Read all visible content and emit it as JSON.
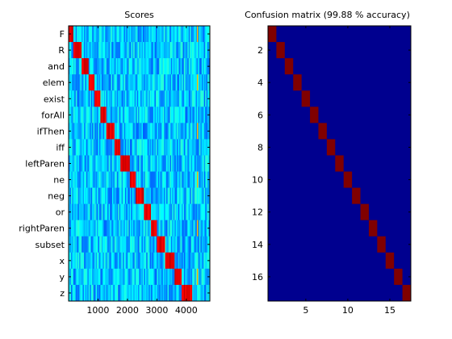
{
  "chart_data": [
    {
      "type": "heatmap",
      "title": "Scores",
      "xlabel": "",
      "ylabel": "",
      "row_labels": [
        "F",
        "R",
        "and",
        "elem",
        "exist",
        "forAll",
        "ifThen",
        "iff",
        "leftParen",
        "ne",
        "neg",
        "or",
        "rightParen",
        "subset",
        "x",
        "y",
        "z"
      ],
      "x_ticks": [
        1000,
        2000,
        3000,
        4000
      ],
      "xlim": [
        1,
        4800
      ],
      "colormap": "jet",
      "diagonal_blocks_end": [
        180,
        430,
        700,
        900,
        1100,
        1300,
        1550,
        1780,
        2080,
        2300,
        2550,
        2800,
        3000,
        3300,
        3600,
        3850,
        4200
      ]
    },
    {
      "type": "heatmap",
      "title": "Confusion matrix (99.88 % accuracy)",
      "x_ticks": [
        5,
        10,
        15
      ],
      "y_ticks": [
        2,
        4,
        6,
        8,
        10,
        12,
        14,
        16
      ],
      "size": 17,
      "diagonal": [
        1,
        1,
        1,
        1,
        1,
        1,
        1,
        1,
        1,
        1,
        1,
        1,
        1,
        1,
        1,
        1,
        1
      ],
      "colormap": "jet"
    }
  ],
  "colors": {
    "off_diagonal": "#00008f",
    "diagonal": "#800000",
    "score_hot": "#e83010",
    "score_base": "#22b8f0"
  }
}
